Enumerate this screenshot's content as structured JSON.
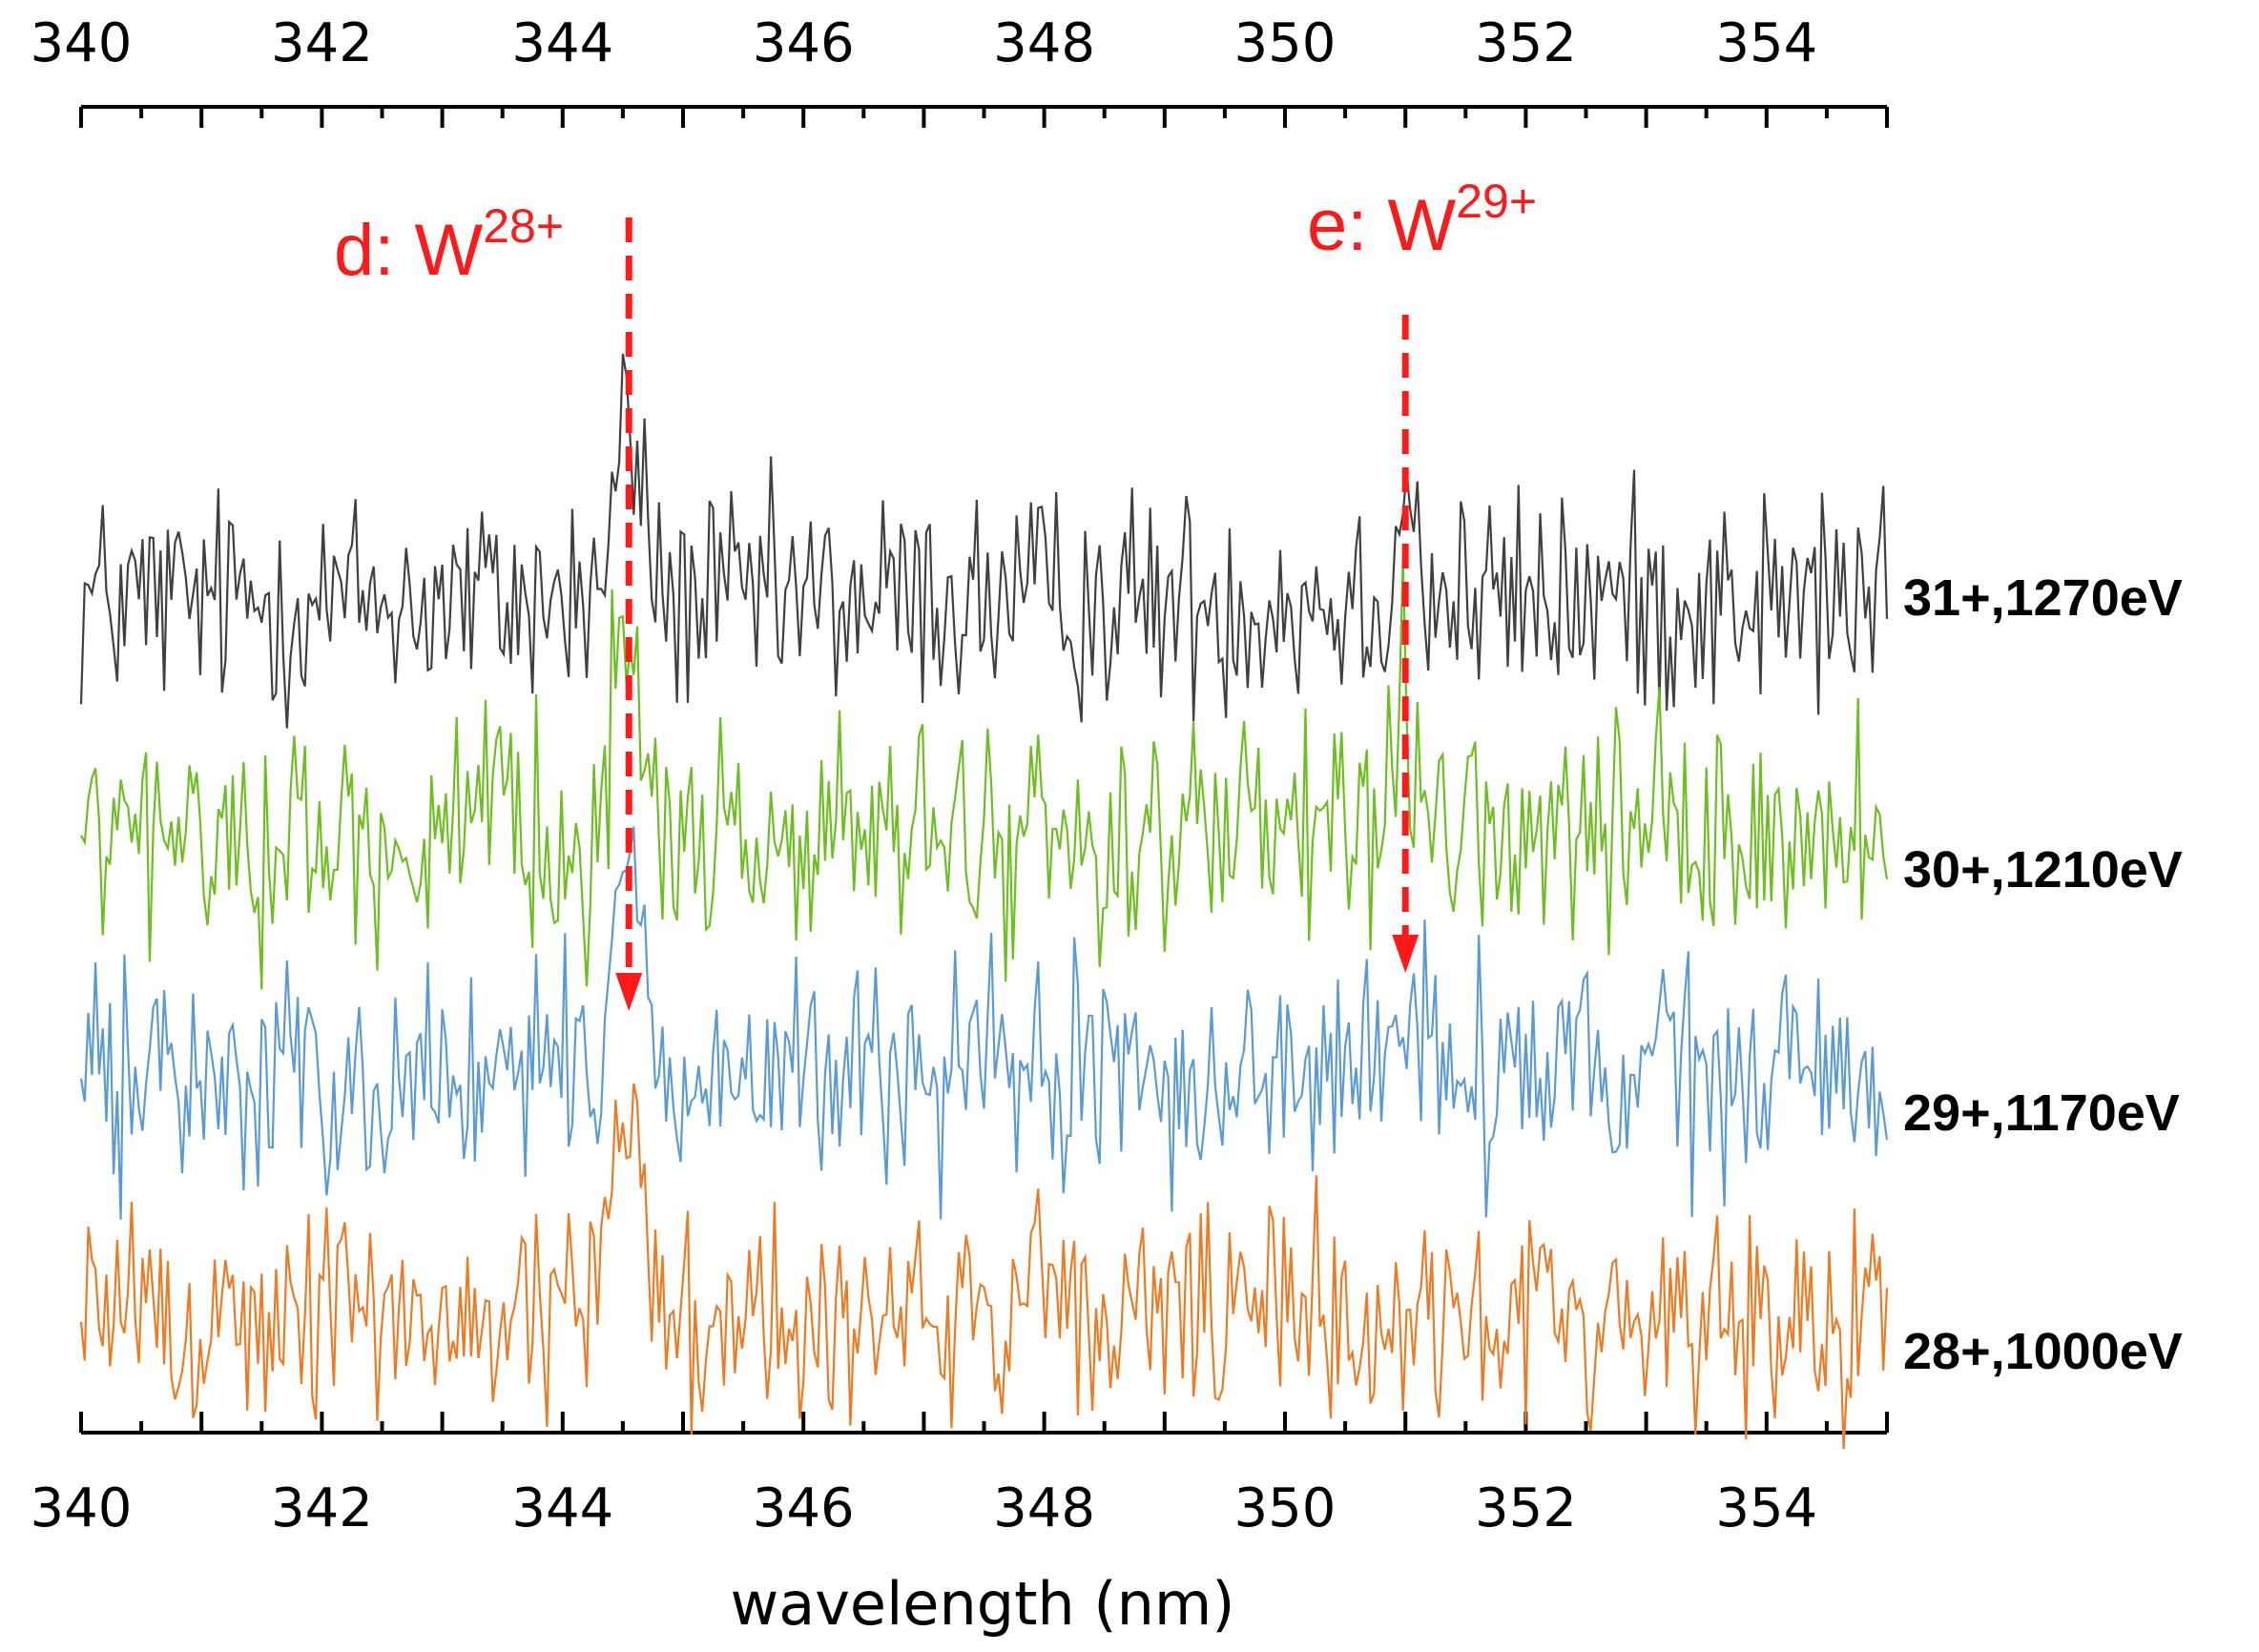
{
  "chart_data": {
    "type": "line",
    "title": "",
    "xlabel": "wavelength (nm)",
    "ylabel": "",
    "xlim": [
      340,
      355
    ],
    "x_ticks": [
      "340",
      "342",
      "344",
      "346",
      "348",
      "350",
      "352",
      "354"
    ],
    "x_step": 0.03,
    "grid": false,
    "series": [
      {
        "name": "31+,1270eV",
        "color": "#404040",
        "offset": 3,
        "peaks": [
          {
            "x": 344.55,
            "height": 0.8,
            "width": 0.16
          },
          {
            "x": 351.0,
            "height": 0.55,
            "width": 0.12
          }
        ]
      },
      {
        "name": "30+,1210eV",
        "color": "#6cbf1f",
        "offset": 2,
        "peaks": [
          {
            "x": 344.55,
            "height": 0.85,
            "width": 0.18
          },
          {
            "x": 351.0,
            "height": 0.7,
            "width": 0.1
          }
        ]
      },
      {
        "name": "29+,1170eV",
        "color": "#5b9bd5",
        "offset": 1,
        "peaks": [
          {
            "x": 344.55,
            "height": 0.95,
            "width": 0.18
          },
          {
            "x": 351.0,
            "height": 0.35,
            "width": 0.2
          }
        ]
      },
      {
        "name": "28+,1000eV",
        "color": "#f07a22",
        "offset": 0,
        "peaks": [
          {
            "x": 344.55,
            "height": 1.1,
            "width": 0.16
          }
        ]
      }
    ],
    "annotations": [
      {
        "id": "d",
        "prefix": "d: W",
        "charge": "28+",
        "x": 344.55,
        "color": "#ff1a1a"
      },
      {
        "id": "e",
        "prefix": "e: W",
        "charge": "29+",
        "x": 351.0,
        "color": "#ff1a1a"
      }
    ]
  }
}
